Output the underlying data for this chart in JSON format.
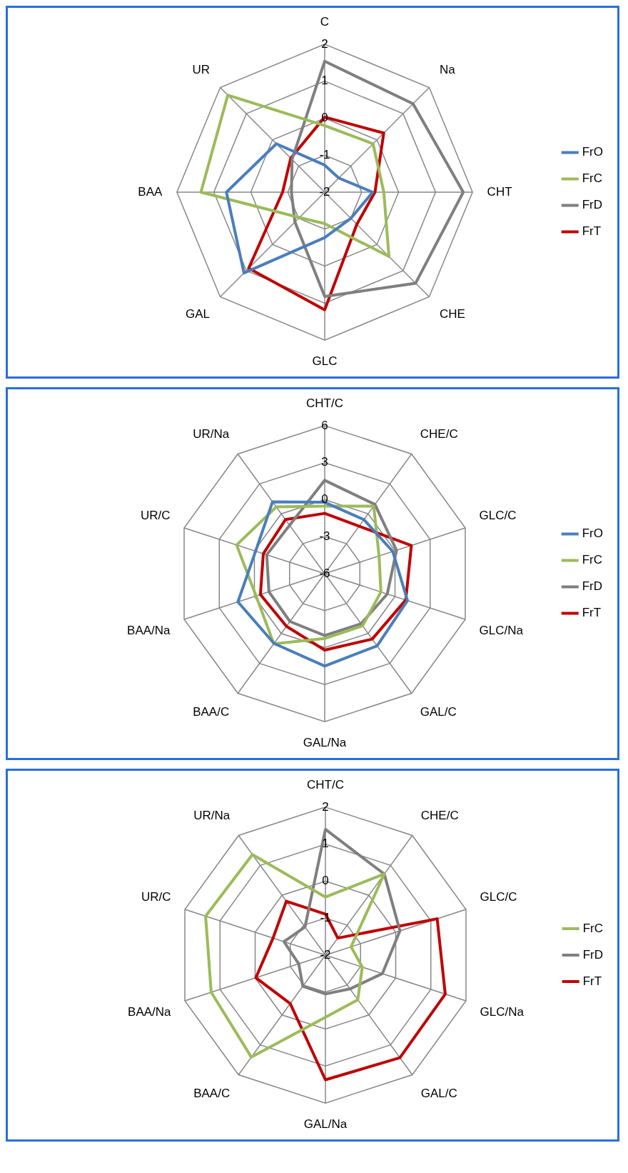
{
  "chart_data": [
    {
      "type": "radar",
      "categories": [
        "C",
        "Na",
        "CHT",
        "CHE",
        "GLC",
        "GAL",
        "BAA",
        "UR"
      ],
      "ylim": [
        -2,
        2
      ],
      "yticks": [
        -2,
        -1,
        0,
        1,
        2
      ],
      "grid": true,
      "legend": "right",
      "marker": "none",
      "series": [
        {
          "name": "FrO",
          "color": "#4a7ebb",
          "values": [
            -1.27,
            -1.46,
            -0.7,
            -1.0,
            -0.77,
            1.09,
            0.66,
            -0.15
          ]
        },
        {
          "name": "FrC",
          "color": "#9bbb59",
          "values": [
            -0.2,
            -0.15,
            -0.4,
            0.46,
            -1.15,
            -1.03,
            1.35,
            1.71
          ]
        },
        {
          "name": "FrD",
          "color": "#7f7f7f",
          "values": [
            1.54,
            1.38,
            1.75,
            1.48,
            0.82,
            -0.86,
            -1.1,
            -0.75
          ]
        },
        {
          "name": "FrT",
          "color": "#c00000",
          "values": [
            0.03,
            0.26,
            -0.64,
            -0.77,
            1.18,
            0.91,
            -0.86,
            -0.7
          ]
        }
      ]
    },
    {
      "type": "radar",
      "categories": [
        "CHT/C",
        "CHE/C",
        "GLC/C",
        "GLC/Na",
        "GAL/C",
        "GAL/Na",
        "BAA/C",
        "BAA/Na",
        "UR/C",
        "UR/Na"
      ],
      "ylim": [
        -6,
        6
      ],
      "yticks": [
        -6,
        -3,
        0,
        3,
        6
      ],
      "grid": true,
      "legend": "right",
      "marker": "none",
      "series": [
        {
          "name": "FrO",
          "color": "#4a7ebb",
          "values": [
            -0.21,
            -0.58,
            -0.19,
            1.07,
            1.24,
            1.5,
            1.0,
            1.41,
            -0.1,
            1.2
          ]
        },
        {
          "name": "FrC",
          "color": "#9bbb59",
          "values": [
            -0.53,
            0.77,
            -1.36,
            -1.2,
            -0.77,
            -0.74,
            1.03,
            -0.14,
            1.52,
            0.69
          ]
        },
        {
          "name": "FrD",
          "color": "#7f7f7f",
          "values": [
            1.57,
            0.94,
            0.13,
            -0.66,
            -0.98,
            -0.98,
            -1.2,
            -1.24,
            -1.05,
            -1.15
          ]
        },
        {
          "name": "FrT",
          "color": "#c00000",
          "values": [
            -1.11,
            -1.24,
            1.4,
            0.92,
            0.56,
            0.2,
            -0.72,
            -0.51,
            -0.76,
            -0.58
          ]
        }
      ]
    },
    {
      "type": "radar",
      "categories": [
        "CHT/C",
        "CHE/C",
        "GLC/C",
        "GLC/Na",
        "GAL/C",
        "GAL/Na",
        "BAA/C",
        "BAA/Na",
        "UR/C",
        "UR/Na"
      ],
      "ylim": [
        -2,
        2
      ],
      "yticks": [
        -2,
        -1,
        0,
        1,
        2
      ],
      "grid": true,
      "legend": "right",
      "marker": "none",
      "series": [
        {
          "name": "FrC",
          "color": "#9bbb59",
          "values": [
            -0.43,
            0.71,
            -1.27,
            -0.95,
            -0.51,
            -0.32,
            1.41,
            1.25,
            1.41,
            1.36
          ]
        },
        {
          "name": "FrD",
          "color": "#7f7f7f",
          "values": [
            1.4,
            0.71,
            0.12,
            -0.38,
            -0.87,
            -0.95,
            -0.96,
            -1.24,
            -0.82,
            -1.06
          ]
        },
        {
          "name": "FrT",
          "color": "#c00000",
          "values": [
            -0.89,
            -1.43,
            1.18,
            1.41,
            1.43,
            1.37,
            -0.38,
            -0.02,
            -0.51,
            -0.2
          ]
        }
      ]
    }
  ]
}
